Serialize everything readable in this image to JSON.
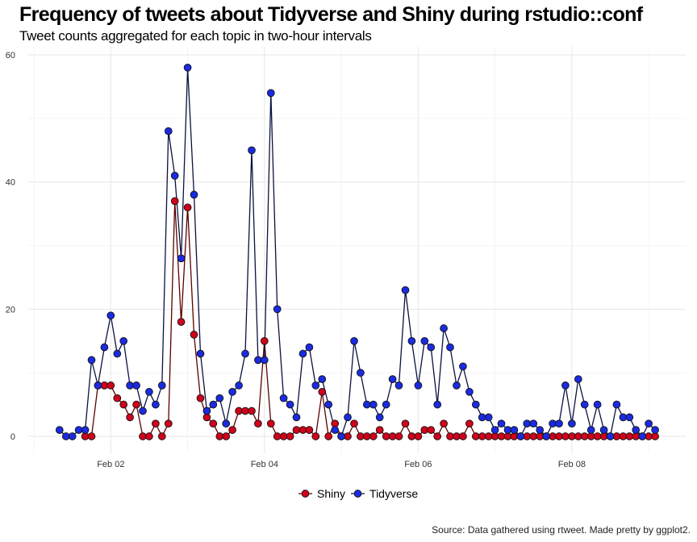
{
  "title": "Frequency of tweets about Tidyverse and Shiny during rstudio::conf",
  "subtitle": "Tweet counts aggregated for each topic in two-hour intervals",
  "caption": "Source: Data gathered using rtweet. Made pretty by ggplot2.",
  "chart_data": {
    "type": "line",
    "title": "Frequency of tweets about Tidyverse and Shiny during rstudio::conf",
    "subtitle": "Tweet counts aggregated for each topic in two-hour intervals",
    "xlabel": "",
    "ylabel": "",
    "xlim": [
      "Feb 01 02:00",
      "Feb 09 04:00"
    ],
    "ylim": [
      0,
      60
    ],
    "x_ticks": [
      "Feb 02",
      "Feb 04",
      "Feb 06",
      "Feb 08"
    ],
    "y_ticks": [
      0,
      20,
      40,
      60
    ],
    "x_interval_hours": 2,
    "x_start": "Feb 01 02:00",
    "legend_position": "bottom",
    "grid": true,
    "series": [
      {
        "name": "Shiny",
        "color": "#d0021b",
        "line_color": "#5a0000",
        "x": [
          "Feb 01 16:00",
          "Feb 01 18:00",
          "Feb 01 20:00",
          "Feb 01 22:00",
          "Feb 02 00:00",
          "Feb 02 02:00",
          "Feb 02 04:00",
          "Feb 02 06:00",
          "Feb 02 08:00",
          "Feb 02 10:00",
          "Feb 02 12:00",
          "Feb 02 14:00",
          "Feb 02 16:00",
          "Feb 02 18:00",
          "Feb 02 20:00",
          "Feb 02 22:00",
          "Feb 03 00:00",
          "Feb 03 02:00",
          "Feb 03 04:00",
          "Feb 03 06:00",
          "Feb 03 08:00",
          "Feb 03 10:00",
          "Feb 03 12:00",
          "Feb 03 14:00",
          "Feb 03 16:00",
          "Feb 03 18:00",
          "Feb 03 20:00",
          "Feb 03 22:00",
          "Feb 04 00:00",
          "Feb 04 02:00",
          "Feb 04 04:00",
          "Feb 04 06:00",
          "Feb 04 08:00",
          "Feb 04 10:00",
          "Feb 04 12:00",
          "Feb 04 14:00",
          "Feb 04 16:00",
          "Feb 04 18:00",
          "Feb 04 20:00",
          "Feb 04 22:00",
          "Feb 05 00:00",
          "Feb 05 02:00",
          "Feb 05 04:00",
          "Feb 05 06:00",
          "Feb 05 08:00",
          "Feb 05 10:00",
          "Feb 05 12:00",
          "Feb 05 14:00",
          "Feb 05 16:00",
          "Feb 05 18:00",
          "Feb 05 20:00",
          "Feb 05 22:00",
          "Feb 06 00:00",
          "Feb 06 02:00",
          "Feb 06 04:00",
          "Feb 06 06:00",
          "Feb 06 08:00",
          "Feb 06 10:00",
          "Feb 06 12:00",
          "Feb 06 14:00",
          "Feb 06 16:00",
          "Feb 06 18:00",
          "Feb 06 20:00",
          "Feb 06 22:00",
          "Feb 07 00:00",
          "Feb 07 02:00",
          "Feb 07 04:00",
          "Feb 07 06:00",
          "Feb 07 08:00",
          "Feb 07 10:00",
          "Feb 07 12:00",
          "Feb 07 14:00",
          "Feb 07 16:00",
          "Feb 07 18:00",
          "Feb 07 20:00",
          "Feb 07 22:00",
          "Feb 08 00:00",
          "Feb 08 02:00",
          "Feb 08 04:00",
          "Feb 08 06:00",
          "Feb 08 08:00",
          "Feb 08 10:00",
          "Feb 08 12:00",
          "Feb 08 14:00",
          "Feb 08 16:00",
          "Feb 08 18:00",
          "Feb 08 20:00",
          "Feb 08 22:00",
          "Feb 09 00:00",
          "Feb 09 02:00"
        ],
        "values": [
          0,
          0,
          8,
          8,
          8,
          6,
          5,
          3,
          5,
          0,
          0,
          2,
          0,
          2,
          37,
          18,
          36,
          16,
          6,
          3,
          2,
          0,
          0,
          1,
          4,
          4,
          4,
          2,
          15,
          2,
          0,
          0,
          0,
          1,
          1,
          1,
          0,
          7,
          0,
          2,
          0,
          0,
          2,
          0,
          0,
          0,
          1,
          0,
          0,
          0,
          2,
          0,
          0,
          1,
          1,
          0,
          2,
          0,
          0,
          0,
          2,
          0,
          0,
          0,
          0,
          0,
          0,
          0,
          0,
          0,
          0,
          0,
          0,
          0,
          0,
          0,
          0,
          0,
          0,
          0,
          0,
          0,
          0,
          0,
          0,
          0,
          0,
          0,
          0,
          0
        ]
      },
      {
        "name": "Tidyverse",
        "color": "#1a2be0",
        "line_color": "#0a1240",
        "x": [
          "Feb 01 08:00",
          "Feb 01 10:00",
          "Feb 01 12:00",
          "Feb 01 14:00",
          "Feb 01 16:00",
          "Feb 01 18:00",
          "Feb 01 20:00",
          "Feb 01 22:00",
          "Feb 02 00:00",
          "Feb 02 02:00",
          "Feb 02 04:00",
          "Feb 02 06:00",
          "Feb 02 08:00",
          "Feb 02 10:00",
          "Feb 02 12:00",
          "Feb 02 14:00",
          "Feb 02 16:00",
          "Feb 02 18:00",
          "Feb 02 20:00",
          "Feb 02 22:00",
          "Feb 03 00:00",
          "Feb 03 02:00",
          "Feb 03 04:00",
          "Feb 03 06:00",
          "Feb 03 08:00",
          "Feb 03 10:00",
          "Feb 03 12:00",
          "Feb 03 14:00",
          "Feb 03 16:00",
          "Feb 03 18:00",
          "Feb 03 20:00",
          "Feb 03 22:00",
          "Feb 04 00:00",
          "Feb 04 02:00",
          "Feb 04 04:00",
          "Feb 04 06:00",
          "Feb 04 08:00",
          "Feb 04 10:00",
          "Feb 04 12:00",
          "Feb 04 14:00",
          "Feb 04 16:00",
          "Feb 04 18:00",
          "Feb 04 20:00",
          "Feb 04 22:00",
          "Feb 05 00:00",
          "Feb 05 02:00",
          "Feb 05 04:00",
          "Feb 05 06:00",
          "Feb 05 08:00",
          "Feb 05 10:00",
          "Feb 05 12:00",
          "Feb 05 14:00",
          "Feb 05 16:00",
          "Feb 05 18:00",
          "Feb 05 20:00",
          "Feb 05 22:00",
          "Feb 06 00:00",
          "Feb 06 02:00",
          "Feb 06 04:00",
          "Feb 06 06:00",
          "Feb 06 08:00",
          "Feb 06 10:00",
          "Feb 06 12:00",
          "Feb 06 14:00",
          "Feb 06 16:00",
          "Feb 06 18:00",
          "Feb 06 20:00",
          "Feb 06 22:00",
          "Feb 07 00:00",
          "Feb 07 02:00",
          "Feb 07 04:00",
          "Feb 07 06:00",
          "Feb 07 08:00",
          "Feb 07 10:00",
          "Feb 07 12:00",
          "Feb 07 14:00",
          "Feb 07 16:00",
          "Feb 07 18:00",
          "Feb 07 20:00",
          "Feb 07 22:00",
          "Feb 08 00:00",
          "Feb 08 02:00",
          "Feb 08 04:00",
          "Feb 08 06:00",
          "Feb 08 08:00",
          "Feb 08 10:00",
          "Feb 08 12:00",
          "Feb 08 14:00",
          "Feb 08 16:00",
          "Feb 08 18:00",
          "Feb 08 20:00",
          "Feb 08 22:00",
          "Feb 09 00:00",
          "Feb 09 02:00"
        ],
        "values": [
          1,
          0,
          0,
          1,
          1,
          12,
          8,
          14,
          19,
          13,
          15,
          8,
          8,
          4,
          7,
          5,
          8,
          48,
          41,
          28,
          58,
          38,
          13,
          4,
          5,
          6,
          2,
          7,
          8,
          13,
          45,
          12,
          12,
          54,
          20,
          6,
          5,
          3,
          13,
          14,
          8,
          9,
          5,
          1,
          0,
          3,
          15,
          10,
          5,
          5,
          3,
          5,
          9,
          8,
          23,
          15,
          8,
          15,
          14,
          5,
          17,
          14,
          8,
          11,
          7,
          5,
          3,
          3,
          1,
          2,
          1,
          1,
          0,
          2,
          2,
          1,
          0,
          2,
          2,
          8,
          2,
          9,
          5,
          1,
          5,
          1,
          0,
          5,
          3,
          3,
          1,
          0,
          2,
          1
        ]
      }
    ]
  }
}
